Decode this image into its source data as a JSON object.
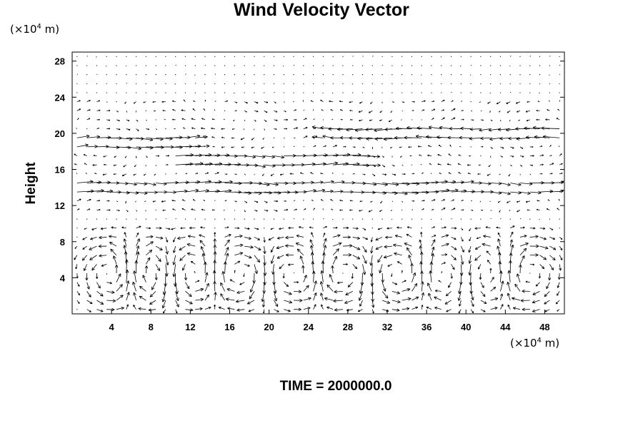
{
  "chart_data": {
    "type": "vector-field",
    "title": "Wind Velocity Vector",
    "ylabel": "Height",
    "y_unit": {
      "prefix": "(×10",
      "exp": "4",
      "suffix": " m)"
    },
    "x_unit": {
      "prefix": "(×10",
      "exp": "4",
      "suffix": " m)"
    },
    "time_label": "TIME = 2000000.0",
    "xlim": [
      0,
      50
    ],
    "ylim": [
      0,
      29
    ],
    "x_ticks": [
      4,
      8,
      12,
      16,
      20,
      24,
      28,
      32,
      36,
      40,
      44,
      48
    ],
    "y_ticks": [
      4,
      8,
      12,
      16,
      20,
      24,
      28
    ],
    "grid": false,
    "cells": {
      "count": 10,
      "centers_x": [
        3.8,
        8.0,
        12.0,
        17.0,
        22.5,
        27.5,
        33.0,
        38.5,
        41.5,
        46.5
      ],
      "radius_x": 3.0,
      "radius_y": 4.0,
      "center_y": 4.5
    },
    "jets": [
      {
        "y": 19.0,
        "direction": "east",
        "extent_x": [
          0,
          13
        ]
      },
      {
        "y": 14.0,
        "direction": "east",
        "extent_x": [
          0,
          50
        ]
      },
      {
        "y": 20.0,
        "direction": "west",
        "extent_x": [
          25,
          50
        ]
      },
      {
        "y": 17.0,
        "direction": "east",
        "extent_x": [
          10,
          30
        ]
      }
    ]
  }
}
